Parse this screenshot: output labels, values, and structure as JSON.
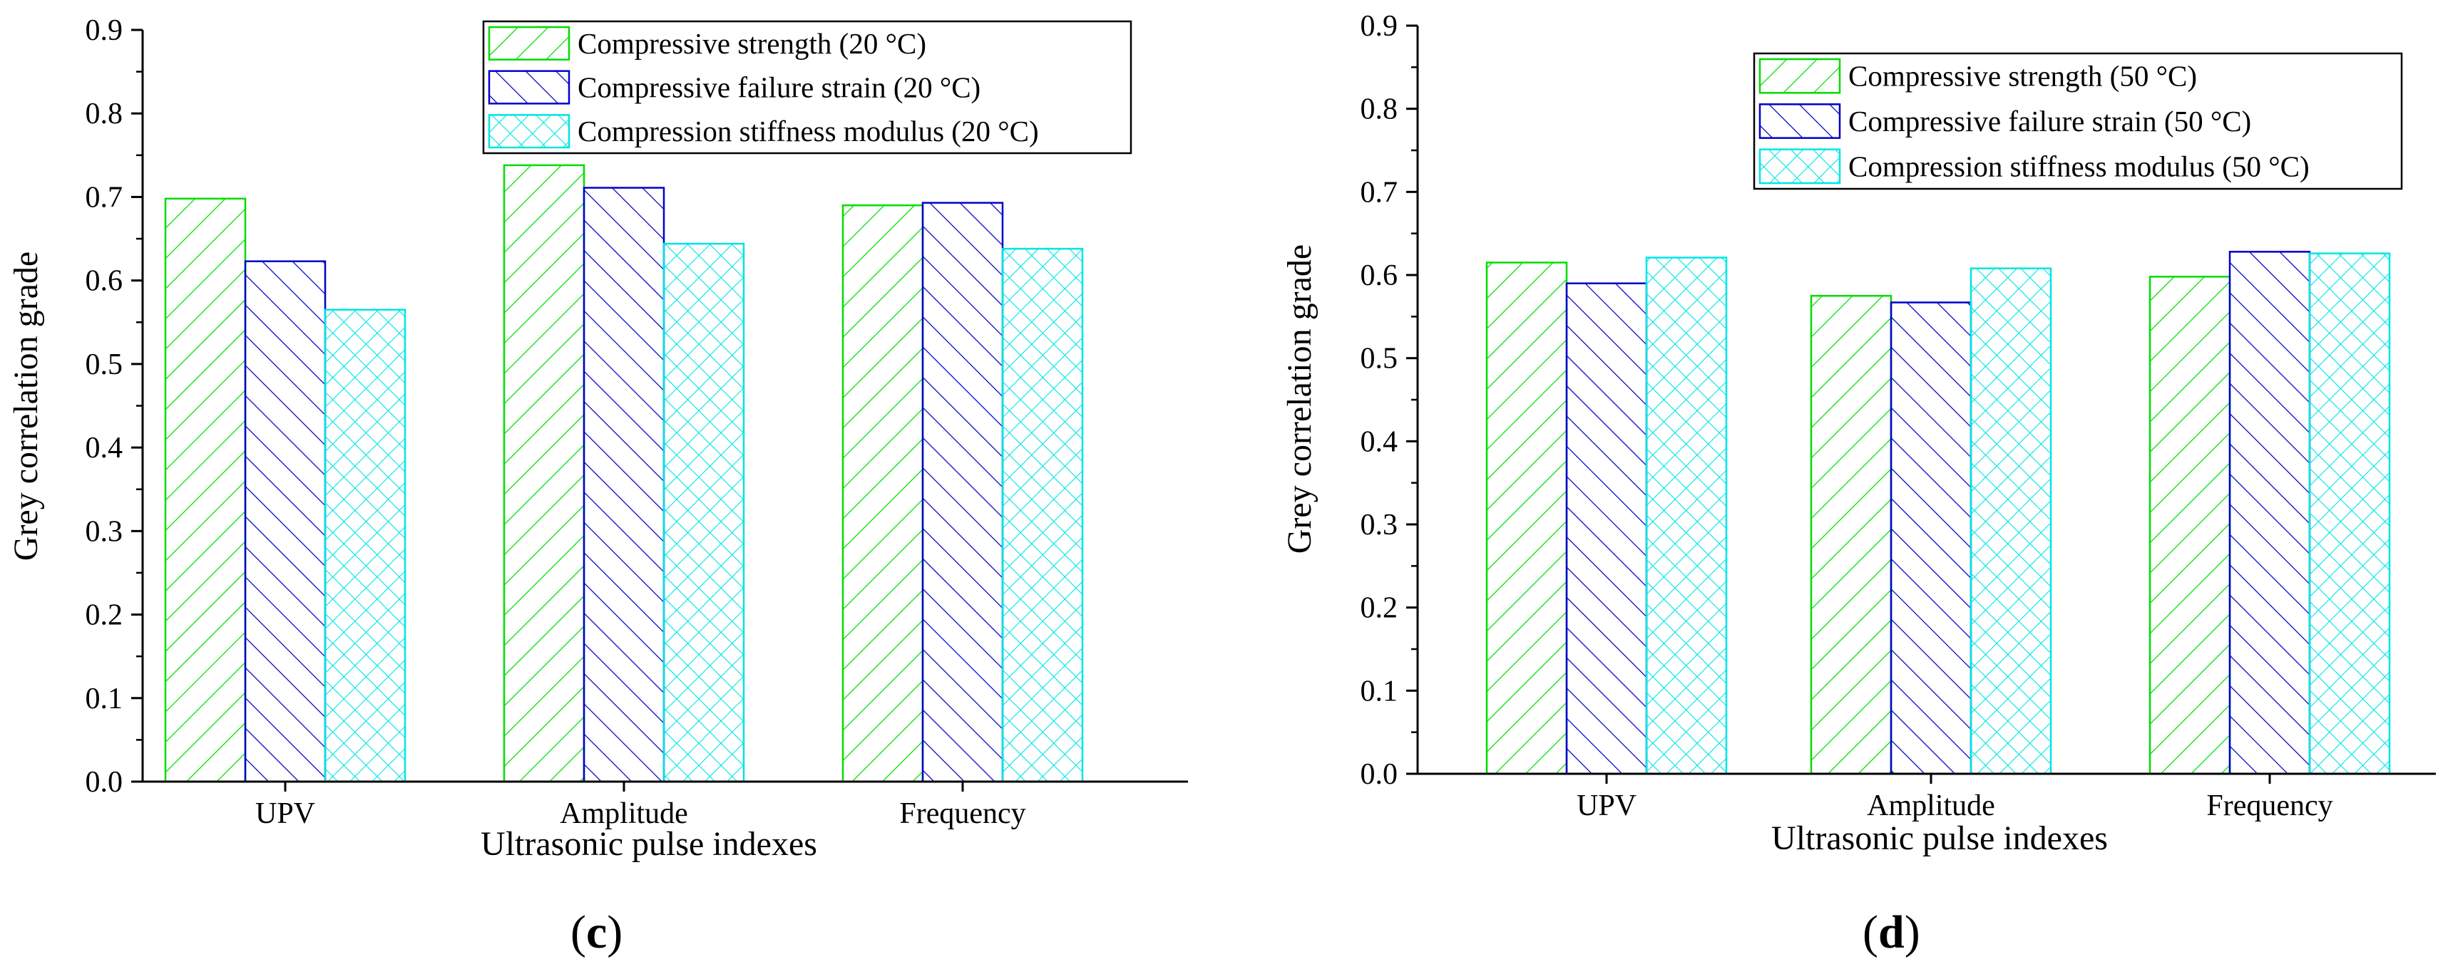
{
  "chart_data": [
    {
      "type": "bar",
      "panel_label": "c",
      "xlabel": "Ultrasonic pulse indexes",
      "ylabel": "Grey correlation grade",
      "ylim": [
        0,
        0.9
      ],
      "yticks": [
        "0.0",
        "0.1",
        "0.2",
        "0.3",
        "0.4",
        "0.5",
        "0.6",
        "0.7",
        "0.8",
        "0.9"
      ],
      "categories": [
        "UPV",
        "Amplitude",
        "Frequency"
      ],
      "legend_position": "top-right",
      "series": [
        {
          "name": "Compressive strength (20 °C)",
          "pattern": "diag-up",
          "color": "#00dd00",
          "values": [
            0.698,
            0.738,
            0.69
          ]
        },
        {
          "name": "Compressive failure strain  (20 °C)",
          "pattern": "diag-down",
          "color": "#0000cc",
          "values": [
            0.623,
            0.711,
            0.693
          ]
        },
        {
          "name": "Compression stiffness modulus  (20 °C)",
          "pattern": "crosshatch",
          "color": "#00e5e5",
          "values": [
            0.565,
            0.644,
            0.638
          ]
        }
      ]
    },
    {
      "type": "bar",
      "panel_label": "d",
      "xlabel": "Ultrasonic pulse indexes",
      "ylabel": "Grey correlation grade",
      "ylim": [
        0,
        0.9
      ],
      "yticks": [
        "0.0",
        "0.1",
        "0.2",
        "0.3",
        "0.4",
        "0.5",
        "0.6",
        "0.7",
        "0.8",
        "0.9"
      ],
      "categories": [
        "UPV",
        "Amplitude",
        "Frequency"
      ],
      "legend_position": "top-right",
      "series": [
        {
          "name": "Compressive strength (50 °C)",
          "pattern": "diag-up",
          "color": "#00dd00",
          "values": [
            0.615,
            0.575,
            0.598
          ]
        },
        {
          "name": "Compressive failure strain  (50 °C)",
          "pattern": "diag-down",
          "color": "#0000cc",
          "values": [
            0.59,
            0.567,
            0.628
          ]
        },
        {
          "name": "Compression stiffness modulus  (50 °C)",
          "pattern": "crosshatch",
          "color": "#00e5e5",
          "values": [
            0.621,
            0.608,
            0.626
          ]
        }
      ]
    }
  ]
}
